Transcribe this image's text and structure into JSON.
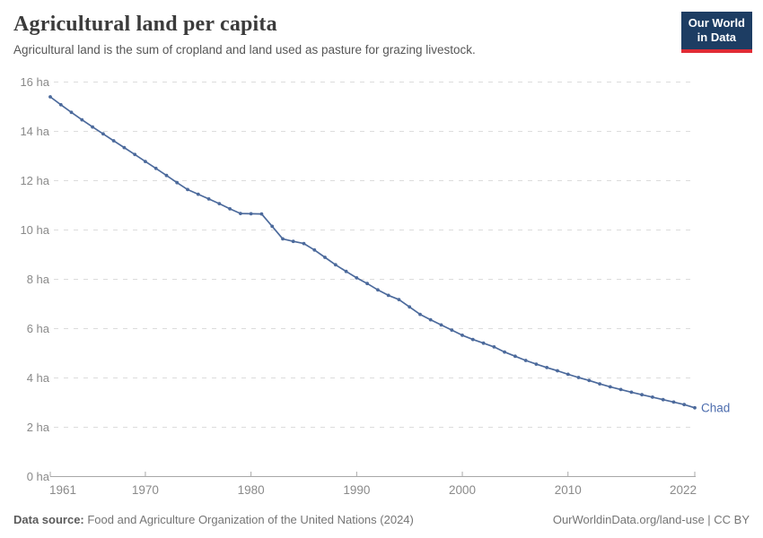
{
  "header": {
    "title": "Agricultural land per capita",
    "subtitle": "Agricultural land is the sum of cropland and land used as pasture for grazing livestock.",
    "logo": {
      "line1": "Our World",
      "line2": "in Data"
    }
  },
  "chart_data": {
    "type": "line",
    "title": "Agricultural land per capita",
    "unit": "ha",
    "ylim": [
      0,
      16
    ],
    "ytick_step": 2,
    "ytick_suffix": " ha",
    "grid": "horizontal-dashed",
    "legend": "end-of-line-label",
    "xticks_labeled": [
      1961,
      1970,
      1980,
      1990,
      2000,
      2010,
      2022
    ],
    "x": [
      1961,
      1962,
      1963,
      1964,
      1965,
      1966,
      1967,
      1968,
      1969,
      1970,
      1971,
      1972,
      1973,
      1974,
      1975,
      1976,
      1977,
      1978,
      1979,
      1980,
      1981,
      1982,
      1983,
      1984,
      1985,
      1986,
      1987,
      1988,
      1989,
      1990,
      1991,
      1992,
      1993,
      1994,
      1995,
      1996,
      1997,
      1998,
      1999,
      2000,
      2001,
      2002,
      2003,
      2004,
      2005,
      2006,
      2007,
      2008,
      2009,
      2010,
      2011,
      2012,
      2013,
      2014,
      2015,
      2016,
      2017,
      2018,
      2019,
      2020,
      2021,
      2022
    ],
    "series": [
      {
        "name": "Chad",
        "color": "#4c6a9c",
        "label_color": "#4d6dae",
        "values": [
          15.4,
          15.08,
          14.77,
          14.47,
          14.18,
          13.9,
          13.62,
          13.34,
          13.06,
          12.78,
          12.5,
          12.21,
          11.92,
          11.64,
          11.45,
          11.26,
          11.07,
          10.86,
          10.67,
          10.66,
          10.65,
          10.15,
          9.64,
          9.54,
          9.45,
          9.19,
          8.89,
          8.59,
          8.32,
          8.06,
          7.83,
          7.57,
          7.35,
          7.18,
          6.88,
          6.58,
          6.36,
          6.15,
          5.94,
          5.73,
          5.56,
          5.41,
          5.26,
          5.05,
          4.88,
          4.71,
          4.56,
          4.42,
          4.29,
          4.15,
          4.02,
          3.9,
          3.76,
          3.64,
          3.53,
          3.42,
          3.32,
          3.22,
          3.12,
          3.02,
          2.92,
          2.79
        ]
      }
    ]
  },
  "footer": {
    "source_label": "Data source:",
    "source_text": " Food and Agriculture Organization of the United Nations (2024)",
    "link_text": "OurWorldinData.org/land-use | CC BY"
  },
  "colors": {
    "line": "#4c6a9c",
    "series_label": "#4d6dae",
    "gridline": "#dcdcdc",
    "axis": "#a8a8a8",
    "tick_text": "#8a8a8a",
    "logo_bg": "#1d3d63",
    "logo_accent": "#e02b35"
  }
}
